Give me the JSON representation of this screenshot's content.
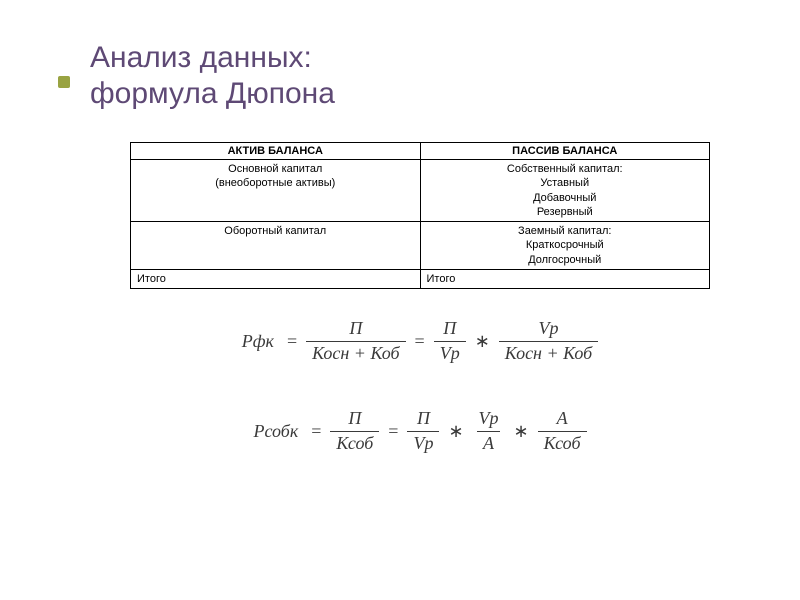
{
  "title": {
    "line1": "Анализ данных:",
    "line2": "формула Дюпона",
    "color": "#5e4975",
    "fontsize": 30
  },
  "bullet_color": "#99a342",
  "table": {
    "border_color": "#000000",
    "fontsize": 11,
    "header": {
      "left": "АКТИВ БАЛАНСА",
      "right": "ПАССИВ БАЛАНСА"
    },
    "rows": [
      {
        "left_align": "center",
        "left_lines": [
          "Основной капитал",
          "(внеоборотные активы)"
        ],
        "right_align": "center",
        "right_lines": [
          "Собственный капитал:",
          "Уставный",
          "Добавочный",
          "Резервный"
        ]
      },
      {
        "left_align": "center",
        "left_lines": [
          "Оборотный капитал"
        ],
        "right_align": "center",
        "right_lines": [
          "Заемный капитал:",
          "Краткосрочный",
          "Долгосрочный"
        ]
      },
      {
        "left_align": "left",
        "left_lines": [
          "Итого"
        ],
        "right_align": "left",
        "right_lines": [
          "Итого"
        ]
      }
    ]
  },
  "formulas": {
    "text_color": "#3a3a3a",
    "fontsize": 18,
    "f1": {
      "lhs": "Рфк",
      "t1_num": "П",
      "t1_den": "Косн + Коб",
      "t2_num": "П",
      "t2_den": "Vр",
      "t3_num": "Vр",
      "t3_den": "Косн + Коб"
    },
    "f2": {
      "lhs": "Рсобк",
      "t1_num": "П",
      "t1_den": "Ксоб",
      "t2_num": "П",
      "t2_den": "Vр",
      "t3_num": "Vр",
      "t3_den": "А",
      "t4_num": "А",
      "t4_den": "Ксоб"
    }
  },
  "background_color": "#ffffff"
}
